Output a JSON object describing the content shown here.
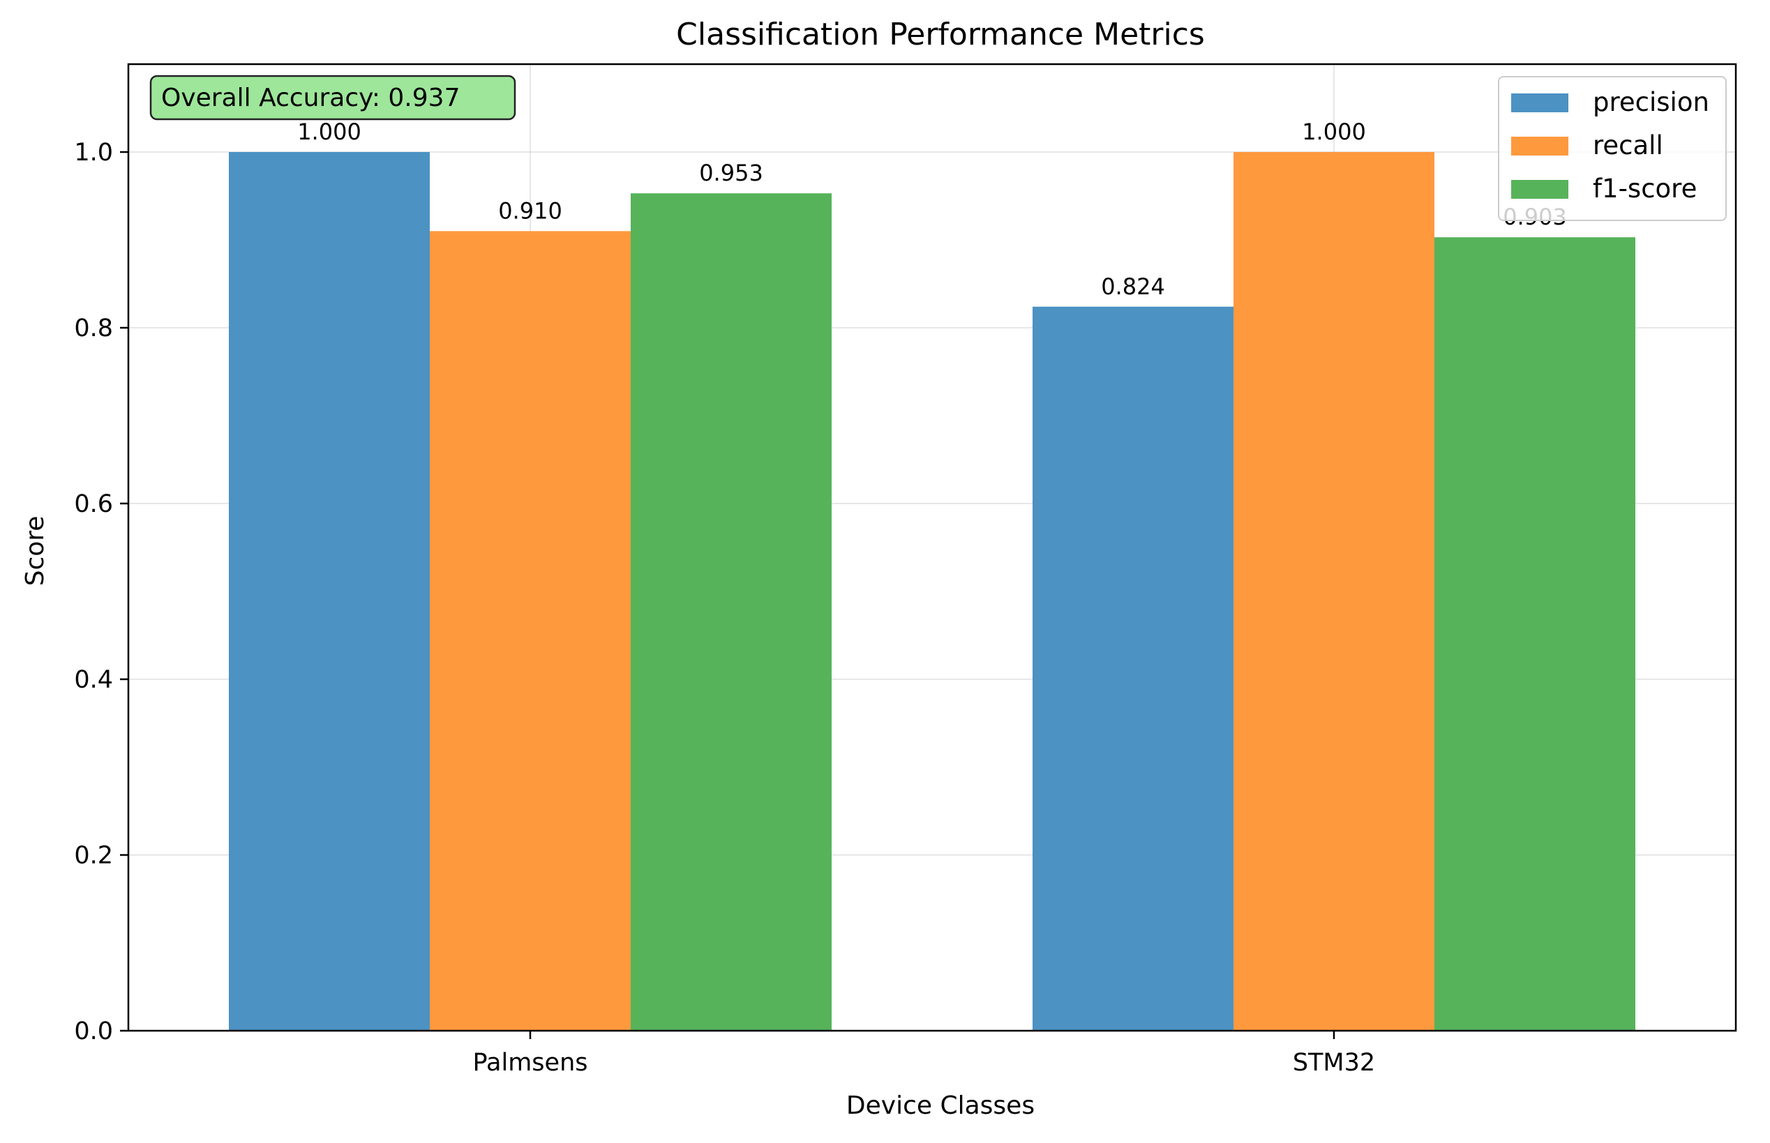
{
  "chart_data": {
    "type": "bar",
    "title": "Classification Performance Metrics",
    "xlabel": "Device Classes",
    "ylabel": "Score",
    "categories": [
      "Palmsens",
      "STM32"
    ],
    "series": [
      {
        "name": "precision",
        "values": [
          1.0,
          0.824
        ],
        "labels": [
          "1.000",
          "0.824"
        ],
        "color": "#4c92c3"
      },
      {
        "name": "recall",
        "values": [
          0.91,
          1.0
        ],
        "labels": [
          "0.910",
          "1.000"
        ],
        "color": "#ff993e"
      },
      {
        "name": "f1-score",
        "values": [
          0.953,
          0.903
        ],
        "labels": [
          "0.953",
          "0.903"
        ],
        "color": "#57b35a"
      }
    ],
    "ylim": [
      0,
      1.1
    ],
    "yticks": [
      0.0,
      0.2,
      0.4,
      0.6,
      0.8,
      1.0
    ],
    "ytick_labels": [
      "0.0",
      "0.2",
      "0.4",
      "0.6",
      "0.8",
      "1.0"
    ],
    "grid": true,
    "legend_position": "top-right",
    "annotation": {
      "text": "Overall Accuracy: 0.937",
      "bg_color": "#9ee69a",
      "position": "top-left"
    }
  }
}
